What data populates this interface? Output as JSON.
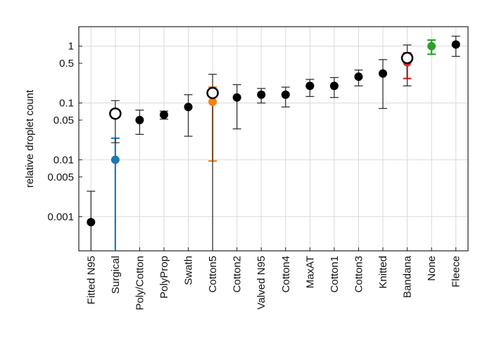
{
  "chart_data": {
    "type": "scatter",
    "ylabel": "relative droplet count",
    "xlabel": "",
    "title": "",
    "yscale": "log",
    "ylim": [
      0.00025,
      2.2
    ],
    "grid": true,
    "yticks": [
      {
        "value": 1,
        "label": "1"
      },
      {
        "value": 0.5,
        "label": "0.5"
      },
      {
        "value": 0.1,
        "label": "0.1"
      },
      {
        "value": 0.05,
        "label": "0.05"
      },
      {
        "value": 0.01,
        "label": "0.01"
      },
      {
        "value": 0.005,
        "label": "0.005"
      },
      {
        "value": 0.001,
        "label": "0.001"
      }
    ],
    "categories": [
      "Fitted N95",
      "Surgical",
      "Poly/Cotton",
      "PolyProp",
      "Swath",
      "Cotton5",
      "Cotton2",
      "Valved N95",
      "Cotton4",
      "MaxAT",
      "Cotton1",
      "Cotton3",
      "Knitted",
      "Bandana",
      "None",
      "Fleece"
    ],
    "points": [
      {
        "category": "Fitted N95",
        "value": 0.0008,
        "low": 0.00025,
        "high": 0.0028,
        "color": "#000000",
        "marker": "filled"
      },
      {
        "category": "Surgical",
        "value": 0.01,
        "low": 0.00025,
        "high": 0.024,
        "color": "#1f77b4",
        "marker": "filled"
      },
      {
        "category": "Surgical",
        "value": 0.065,
        "low": 0.02,
        "high": 0.11,
        "color": "#000000",
        "marker": "open"
      },
      {
        "category": "Poly/Cotton",
        "value": 0.05,
        "low": 0.028,
        "high": 0.075,
        "color": "#000000",
        "marker": "filled"
      },
      {
        "category": "PolyProp",
        "value": 0.062,
        "low": 0.052,
        "high": 0.072,
        "color": "#000000",
        "marker": "filled"
      },
      {
        "category": "Swath",
        "value": 0.085,
        "low": 0.026,
        "high": 0.14,
        "color": "#000000",
        "marker": "filled"
      },
      {
        "category": "Cotton5",
        "value": 0.105,
        "low": 0.0095,
        "high": 0.19,
        "color": "#ff7f0e",
        "marker": "filled"
      },
      {
        "category": "Cotton5",
        "value": 0.15,
        "low": 0.00025,
        "high": 0.32,
        "color": "#000000",
        "marker": "open"
      },
      {
        "category": "Cotton2",
        "value": 0.125,
        "low": 0.035,
        "high": 0.21,
        "color": "#000000",
        "marker": "filled"
      },
      {
        "category": "Valved N95",
        "value": 0.14,
        "low": 0.1,
        "high": 0.18,
        "color": "#000000",
        "marker": "filled"
      },
      {
        "category": "Cotton4",
        "value": 0.14,
        "low": 0.085,
        "high": 0.19,
        "color": "#000000",
        "marker": "filled"
      },
      {
        "category": "MaxAT",
        "value": 0.2,
        "low": 0.13,
        "high": 0.26,
        "color": "#000000",
        "marker": "filled"
      },
      {
        "category": "Cotton1",
        "value": 0.2,
        "low": 0.125,
        "high": 0.28,
        "color": "#000000",
        "marker": "filled"
      },
      {
        "category": "Cotton3",
        "value": 0.29,
        "low": 0.2,
        "high": 0.38,
        "color": "#000000",
        "marker": "filled"
      },
      {
        "category": "Knitted",
        "value": 0.33,
        "low": 0.08,
        "high": 0.58,
        "color": "#000000",
        "marker": "filled"
      },
      {
        "category": "Bandana",
        "value": 0.52,
        "low": 0.27,
        "high": 0.76,
        "color": "#d62728",
        "marker": "filled"
      },
      {
        "category": "Bandana",
        "value": 0.62,
        "low": 0.2,
        "high": 1.05,
        "color": "#000000",
        "marker": "open"
      },
      {
        "category": "None",
        "value": 1.0,
        "low": 0.72,
        "high": 1.28,
        "color": "#2ca02c",
        "marker": "filled"
      },
      {
        "category": "Fleece",
        "value": 1.07,
        "low": 0.66,
        "high": 1.5,
        "color": "#000000",
        "marker": "filled"
      }
    ]
  }
}
